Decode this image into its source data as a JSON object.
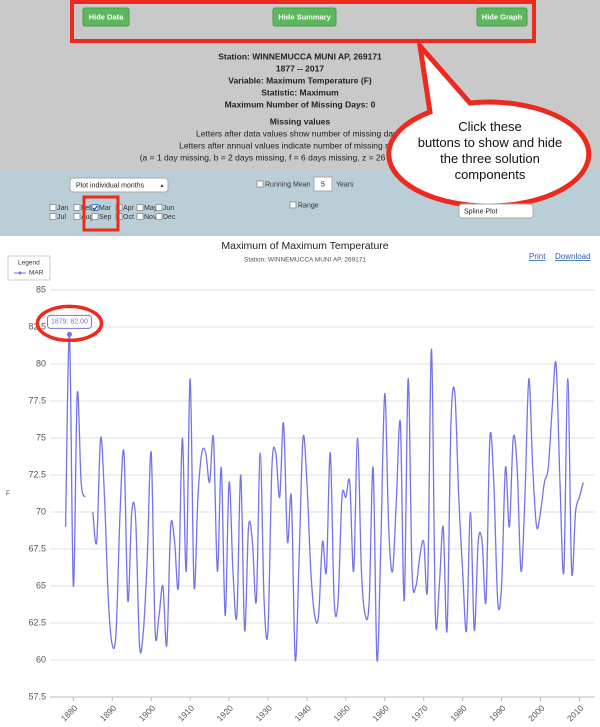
{
  "buttons": [
    "Hide Data",
    "Hide Summary",
    "Hide Graph"
  ],
  "summary": {
    "lines": [
      "Station: WINNEMUCCA MUNI AP, 269171",
      "1877 -- 2017",
      "Variable: Maximum Temperature  (F)",
      "Statistic: Maximum",
      "Maximum Number of Missing Days: 0"
    ],
    "missing_title": "Missing values",
    "missing_lines": [
      "Letters after data values show number of missing days.",
      "Letters after annual values indicate number of missing mo",
      "(a = 1 day missing, b = 2 days missing, f = 6 days missing, z = 26 or mor"
    ]
  },
  "callout": "Click these buttons to show and hide the three solution components",
  "controls": {
    "plot_select": "Plot individual months",
    "months": [
      "Jan",
      "Feb",
      "Mar",
      "Apr",
      "May",
      "Jun",
      "Jul",
      "Aug",
      "Sep",
      "Oct",
      "Nov",
      "Dec"
    ],
    "checked": [
      false,
      false,
      true,
      false,
      false,
      false,
      false,
      false,
      false,
      false,
      false,
      false
    ],
    "running_mean": "Running Mean",
    "running_mean_value": "5",
    "years": "Years",
    "range": "Range",
    "plot_type": "Spline Plot"
  },
  "chart_links": [
    "Print",
    "Download"
  ],
  "chart_data": {
    "type": "line",
    "title": "Maximum of Maximum Temperature",
    "subtitle": "Station: WINNEMUCCA MUNI AP, 269171",
    "y_label": "F",
    "legend_title": "Legend",
    "tooltip": "1879: 82.00",
    "xlim": [
      1874,
      2014
    ],
    "xticks": [
      1880,
      1890,
      1900,
      1910,
      1920,
      1930,
      1940,
      1950,
      1960,
      1970,
      1980,
      1990,
      2000,
      2010
    ],
    "ylim": [
      57.5,
      85
    ],
    "yticks": [
      57.5,
      60,
      62.5,
      65,
      67.5,
      70,
      72.5,
      75,
      77.5,
      80,
      82.5,
      85
    ],
    "grid": true,
    "x": [
      1878,
      1879,
      1880,
      1881,
      1882,
      1883,
      1884,
      1885,
      1886,
      1887,
      1888,
      1889,
      1890,
      1891,
      1892,
      1893,
      1894,
      1895,
      1896,
      1897,
      1898,
      1899,
      1900,
      1901,
      1902,
      1903,
      1904,
      1905,
      1906,
      1907,
      1908,
      1909,
      1910,
      1911,
      1912,
      1913,
      1914,
      1915,
      1916,
      1917,
      1918,
      1919,
      1920,
      1921,
      1922,
      1923,
      1924,
      1925,
      1926,
      1927,
      1928,
      1929,
      1930,
      1931,
      1932,
      1933,
      1934,
      1935,
      1936,
      1937,
      1938,
      1939,
      1940,
      1941,
      1942,
      1943,
      1944,
      1945,
      1946,
      1947,
      1948,
      1949,
      1950,
      1951,
      1952,
      1953,
      1954,
      1955,
      1956,
      1957,
      1958,
      1959,
      1960,
      1961,
      1962,
      1963,
      1964,
      1965,
      1966,
      1967,
      1968,
      1969,
      1970,
      1971,
      1972,
      1973,
      1974,
      1975,
      1976,
      1977,
      1978,
      1979,
      1980,
      1981,
      1982,
      1983,
      1984,
      1985,
      1986,
      1987,
      1988,
      1989,
      1990,
      1991,
      1992,
      1993,
      1994,
      1995,
      1996,
      1997,
      1998,
      1999,
      2000,
      2001,
      2002,
      2003,
      2004,
      2005,
      2006,
      2007,
      2008,
      2009,
      2010,
      2011
    ],
    "series": [
      {
        "name": "MAR",
        "color": "#7474e8",
        "values": [
          69,
          82,
          65,
          78,
          72,
          71,
          null,
          70,
          68,
          75,
          71,
          64,
          61,
          62,
          70,
          74,
          64,
          70,
          69.5,
          61,
          62,
          67,
          74,
          62,
          63,
          65,
          61,
          69,
          68,
          65,
          75,
          66,
          79,
          65,
          71,
          74,
          74,
          72,
          75,
          66,
          73,
          63,
          72,
          66,
          63,
          72.5,
          62,
          69,
          68,
          64,
          74,
          64,
          62,
          73,
          74,
          71,
          76,
          68,
          71,
          60,
          67,
          75,
          72,
          66,
          63,
          63,
          68,
          66,
          74,
          64,
          64,
          71,
          71,
          72,
          66,
          75,
          66,
          63,
          64,
          73,
          60,
          68,
          78,
          69,
          66,
          71,
          76,
          64,
          79,
          66,
          65,
          67,
          68,
          65,
          81,
          63,
          65,
          69,
          62,
          76,
          78,
          71,
          66,
          62,
          70,
          62,
          68,
          68,
          64,
          75,
          72,
          64,
          65,
          73,
          69,
          75,
          73,
          66,
          71,
          79,
          73,
          69,
          70,
          72,
          73,
          77,
          80,
          72,
          66,
          79,
          66,
          70,
          71,
          72
        ]
      }
    ]
  }
}
